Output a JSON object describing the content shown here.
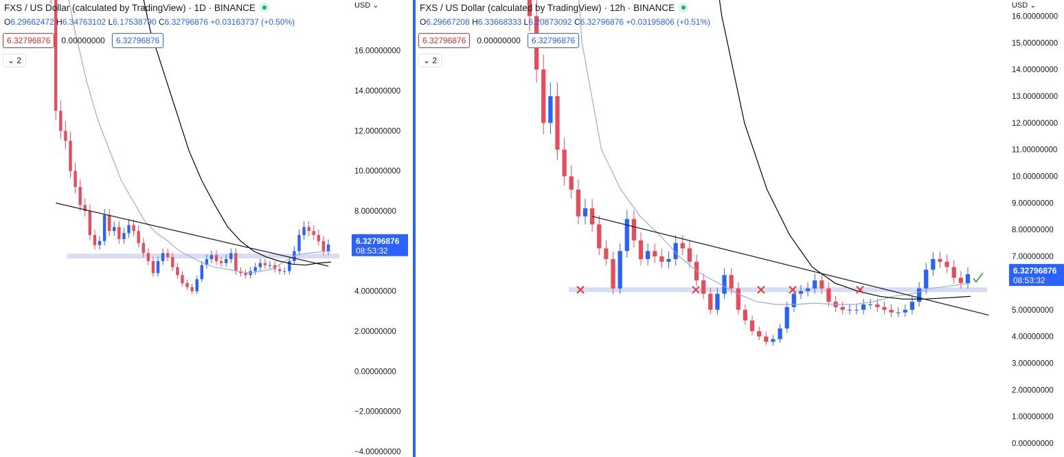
{
  "left": {
    "title": "FXS / US Dollar (calculated by TradingView) · 1D · BINANCE",
    "ohlc": {
      "o_key": "O",
      "o": "6.29662472",
      "h_key": "H",
      "h": "6.34763102",
      "l_key": "L",
      "l": "6.17538790",
      "c_key": "C",
      "c": "6.32796876",
      "change": "+0.03163737 (+0.50%)"
    },
    "value_red": "6.32796876",
    "value_plain": "0.00000000",
    "value_blue": "6.32796876",
    "collapse": "2",
    "currency": "USD ⌄",
    "price_label": "6.32796876",
    "countdown": "08:53:32",
    "axis_ticks": [
      "16.00000000",
      "14.00000000",
      "12.00000000",
      "10.00000000",
      "8.00000000",
      "6.00000000",
      "4.00000000",
      "2.00000000",
      "0.00000000",
      "−2.00000000",
      "−4.00000000"
    ]
  },
  "right": {
    "title": "FXS / US Dollar (calculated by TradingView) · 12h · BINANCE",
    "ohlc": {
      "o_key": "O",
      "o": "6.29667208",
      "h_key": "H",
      "h": "6.33668333",
      "l_key": "L",
      "l": "6.20873092",
      "c_key": "C",
      "c": "6.32796876",
      "change": "+0.03195806 (+0.51%)"
    },
    "value_red": "6.32796876",
    "value_plain": "0.00000000",
    "value_blue": "6.32796876",
    "collapse": "2",
    "currency": "USD ⌄",
    "price_label": "6.32796876",
    "countdown": "08:53:32",
    "axis_ticks": [
      "16.00000000",
      "15.00000000",
      "14.00000000",
      "13.00000000",
      "12.00000000",
      "11.00000000",
      "10.00000000",
      "9.00000000",
      "8.00000000",
      "7.00000000",
      "5.00000000",
      "4.00000000",
      "3.00000000",
      "2.00000000",
      "1.00000000",
      "0.00000000"
    ]
  },
  "colors": {
    "up": "#2962ff",
    "down": "#e84c5a",
    "ma_fast": "#9fa8da",
    "ma_slow": "#000000",
    "zone": "#d6ddf5",
    "accent": "#2962ff",
    "mark_x": "#e53935",
    "check": "#4caf50"
  },
  "chart_data": [
    {
      "type": "candlestick",
      "symbol": "FXS / US Dollar",
      "interval": "1D",
      "exchange": "BINANCE",
      "ylim": [
        -4,
        17.5
      ],
      "last_price": 6.32796876,
      "support_zone": 5.75,
      "closes": [
        34,
        28,
        19,
        13,
        12,
        11.5,
        10,
        9.2,
        8.3,
        8.0,
        6.8,
        6.3,
        6.5,
        7.8,
        7.0,
        7.2,
        6.6,
        6.9,
        7.3,
        7.0,
        6.4,
        5.9,
        5.5,
        4.9,
        5.5,
        5.9,
        5.7,
        5.2,
        4.8,
        4.4,
        4.2,
        4.0,
        4.6,
        5.3,
        5.6,
        5.8,
        5.5,
        5.4,
        5.6,
        5.9,
        5.0,
        4.9,
        4.8,
        5.0,
        5.2,
        5.4,
        5.3,
        5.3,
        5.1,
        5.0,
        5.0,
        5.5,
        6.0,
        6.8,
        7.2,
        7.0,
        6.8,
        6.5,
        6.0,
        6.33
      ],
      "ma_fast": [
        20,
        17,
        14.5,
        12.5,
        11,
        9.5,
        8.5,
        7.5,
        6.9,
        6.5,
        6.0,
        5.7,
        5.4,
        5.2,
        5.1,
        5.0,
        4.9,
        5.0,
        5.1,
        5.5,
        5.8,
        5.9,
        5.95,
        6.0
      ],
      "ma_slow": [
        20,
        17,
        15,
        13,
        11,
        9.5,
        8.3,
        7.2,
        6.5,
        6.0,
        5.7,
        5.5,
        5.35,
        5.3,
        5.4,
        5.45
      ],
      "trendline": [
        [
          3,
          8.4
        ],
        [
          59,
          5.25
        ]
      ]
    },
    {
      "type": "candlestick",
      "symbol": "FXS / US Dollar",
      "interval": "12h",
      "exchange": "BINANCE",
      "ylim": [
        0,
        16.5
      ],
      "last_price": 6.32796876,
      "support_zone": 5.75,
      "closes": [
        16,
        14,
        12,
        13,
        11,
        10,
        9.5,
        8.5,
        8.8,
        8.2,
        7.3,
        6.9,
        5.8,
        7.2,
        8.4,
        7.6,
        6.9,
        7.2,
        7.0,
        6.8,
        6.9,
        7.5,
        7.3,
        6.8,
        6.1,
        5.6,
        5.0,
        5.6,
        6.3,
        5.8,
        5.0,
        4.6,
        4.2,
        4.0,
        3.8,
        3.9,
        4.3,
        5.1,
        5.6,
        5.7,
        5.8,
        6.1,
        5.8,
        5.3,
        5.1,
        5.0,
        5.0,
        5.0,
        5.2,
        5.2,
        5.1,
        5.0,
        4.9,
        4.9,
        5.0,
        5.3,
        5.8,
        6.5,
        6.9,
        6.8,
        6.6,
        6.2,
        6.0,
        6.33
      ],
      "ma_fast": [
        25,
        15,
        11,
        9.5,
        8.5,
        7.8,
        7.0,
        6.4,
        6.0,
        5.6,
        5.3,
        5.2,
        5.2,
        5.25,
        5.2,
        5.2,
        5.3,
        5.5,
        5.6,
        5.8,
        5.9,
        6.0
      ],
      "ma_slow": [
        30,
        22,
        16,
        12,
        9.5,
        7.8,
        6.6,
        6.0,
        5.7,
        5.5,
        5.4,
        5.4,
        5.45,
        5.5
      ],
      "trendline": [
        [
          9,
          8.5
        ],
        [
          66,
          4.8
        ]
      ],
      "touch_marks": 5
    }
  ]
}
